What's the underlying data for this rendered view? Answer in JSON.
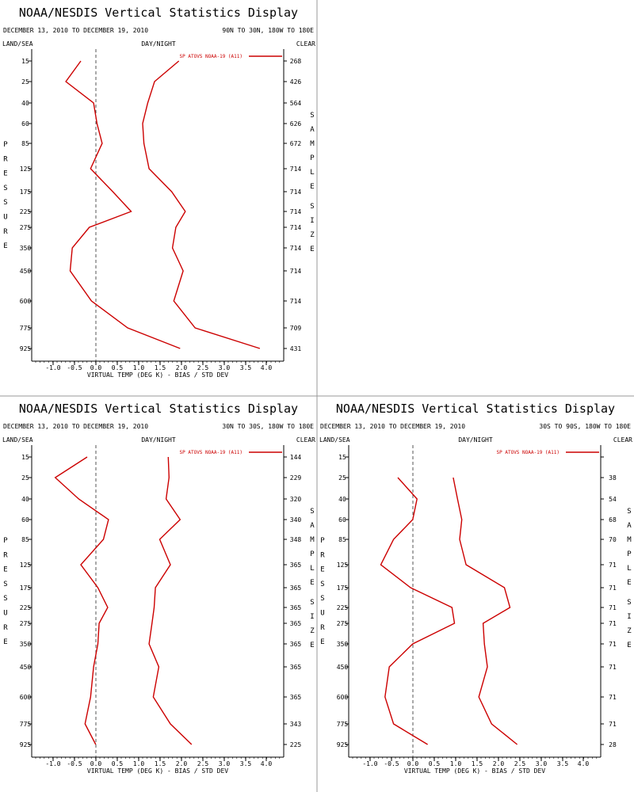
{
  "panel_title": "NOAA/NESDIS Vertical Statistics Display",
  "date_range": "DECEMBER 13, 2010 TO DECEMBER 19, 2010",
  "left_header": "LAND/SEA",
  "center_header": "DAY/NIGHT",
  "right_header": "CLEAR",
  "left_axis_title": "PRESSURE",
  "right_axis_title": "SAMPLE SIZE",
  "xlabel": "VIRTUAL TEMP (DEG K) - BIAS / STD DEV",
  "legend_label": "SP ATOVS NOAA-19 (A11)",
  "colors": {
    "series": "#cc0000",
    "axis": "#000000",
    "zero_line": "#555555",
    "divider": "#999999"
  },
  "chart_data": [
    {
      "type": "line",
      "region": "90N TO 30N, 180W TO 180E",
      "pressure_levels": [
        15,
        25,
        40,
        60,
        85,
        125,
        175,
        225,
        275,
        350,
        450,
        600,
        775,
        925
      ],
      "sample_size": [
        268,
        426,
        564,
        626,
        672,
        714,
        714,
        714,
        714,
        714,
        714,
        714,
        709,
        431
      ],
      "xlim": [
        -1.5,
        4.5
      ],
      "xticks": [
        "-1.0",
        "-0.5",
        "0.0",
        "0.5",
        "1.0",
        "1.5",
        "2.0",
        "2.5",
        "3.0",
        "3.5",
        "4.0"
      ],
      "series": [
        {
          "values": [
            -0.35,
            -0.7,
            -0.05,
            0.03,
            0.15,
            -0.12,
            0.4,
            0.83,
            -0.15,
            -0.55,
            -0.6,
            -0.1,
            0.75,
            1.98
          ]
        },
        {
          "values": [
            1.95,
            1.38,
            1.22,
            1.1,
            1.13,
            1.25,
            1.78,
            2.1,
            1.88,
            1.8,
            2.05,
            1.83,
            2.33,
            3.85
          ]
        }
      ]
    },
    {
      "type": "line",
      "region": "30N TO 30S, 180W TO 180E",
      "pressure_levels": [
        15,
        25,
        40,
        60,
        85,
        125,
        175,
        225,
        275,
        350,
        450,
        600,
        775,
        925
      ],
      "sample_size": [
        144,
        229,
        320,
        340,
        348,
        365,
        365,
        365,
        365,
        365,
        365,
        365,
        343,
        225
      ],
      "xlim": [
        -1.5,
        4.5
      ],
      "xticks": [
        "-1.0",
        "-0.5",
        "0.0",
        "0.5",
        "1.0",
        "1.5",
        "2.0",
        "2.5",
        "3.0",
        "3.5",
        "4.0"
      ],
      "series": [
        {
          "values": [
            -0.2,
            -0.95,
            -0.4,
            0.3,
            0.18,
            -0.35,
            0.05,
            0.28,
            0.08,
            0.05,
            -0.05,
            -0.12,
            -0.25,
            0.0
          ]
        },
        {
          "values": [
            1.7,
            1.72,
            1.65,
            1.98,
            1.5,
            1.75,
            1.4,
            1.37,
            1.32,
            1.25,
            1.48,
            1.35,
            1.75,
            2.25
          ]
        }
      ]
    },
    {
      "type": "line",
      "region": "30S TO 90S, 180W TO 180E",
      "pressure_levels": [
        15,
        25,
        40,
        60,
        85,
        125,
        175,
        225,
        275,
        350,
        450,
        600,
        775,
        925
      ],
      "sample_size": [
        "",
        38,
        54,
        68,
        70,
        71,
        71,
        71,
        71,
        71,
        71,
        71,
        71,
        28
      ],
      "xlim": [
        -1.5,
        4.5
      ],
      "xticks": [
        "-1.0",
        "-0.5",
        "0.0",
        "0.5",
        "1.0",
        "1.5",
        "2.0",
        "2.5",
        "3.0",
        "3.5",
        "4.0"
      ],
      "series": [
        {
          "values": [
            null,
            -0.35,
            0.1,
            0.0,
            -0.45,
            -0.75,
            -0.05,
            0.92,
            0.98,
            0.0,
            -0.55,
            -0.65,
            -0.45,
            0.35
          ]
        },
        {
          "values": [
            null,
            0.95,
            1.05,
            1.15,
            1.1,
            1.25,
            2.15,
            2.28,
            1.65,
            1.68,
            1.75,
            1.55,
            1.85,
            2.45
          ]
        }
      ]
    }
  ]
}
